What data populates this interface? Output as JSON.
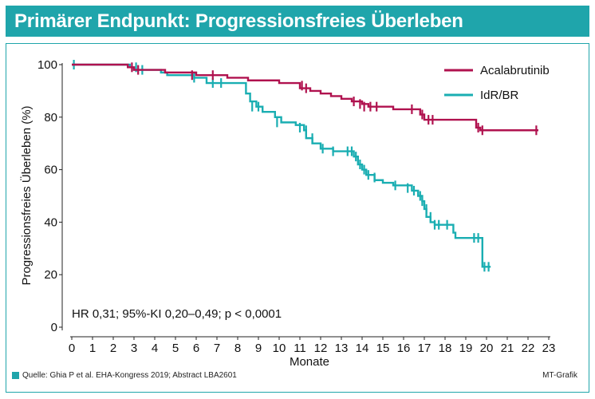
{
  "title": "Primärer Endpunkt: Progressionsfreies Überleben",
  "source": "Quelle: Ghia P et al. EHA-Kongress 2019; Abstract LBA2601",
  "credit": "MT-Grafik",
  "annotation": "HR 0,31; 95%-KI 0,20–0,49; p < 0,0001",
  "colors": {
    "accent": "#1fa5ab",
    "acalabrutinib": "#b0124f",
    "idr_br": "#1aaeb2"
  },
  "chart_data": {
    "type": "line",
    "step": true,
    "xlabel": "Monate",
    "ylabel": "Progressionsfreies Überleben (%)",
    "xlim": [
      0,
      23
    ],
    "ylim": [
      0,
      100
    ],
    "xticks": [
      0,
      1,
      2,
      3,
      4,
      5,
      6,
      7,
      8,
      9,
      10,
      11,
      12,
      13,
      14,
      15,
      16,
      17,
      18,
      19,
      20,
      21,
      22,
      23
    ],
    "yticks": [
      0,
      20,
      40,
      60,
      80,
      100
    ],
    "legend_position": "top-right",
    "series": [
      {
        "name": "Acalabrutinib",
        "color": "#b0124f",
        "points": [
          [
            0,
            100
          ],
          [
            2.7,
            99
          ],
          [
            3,
            98
          ],
          [
            4.5,
            97
          ],
          [
            6,
            96
          ],
          [
            7.5,
            95
          ],
          [
            8.5,
            94
          ],
          [
            10,
            93
          ],
          [
            11,
            91
          ],
          [
            11.5,
            90
          ],
          [
            12,
            89
          ],
          [
            12.5,
            88
          ],
          [
            13,
            87
          ],
          [
            13.5,
            86
          ],
          [
            14,
            85
          ],
          [
            14.3,
            84
          ],
          [
            15,
            84
          ],
          [
            15.5,
            83
          ],
          [
            16.5,
            83
          ],
          [
            16.8,
            81
          ],
          [
            17,
            79
          ],
          [
            18,
            79
          ],
          [
            19.3,
            79
          ],
          [
            19.5,
            76
          ],
          [
            19.7,
            75
          ],
          [
            22.5,
            75
          ]
        ],
        "censored": [
          [
            2.9,
            99
          ],
          [
            3.2,
            98
          ],
          [
            5.8,
            96
          ],
          [
            6.8,
            96
          ],
          [
            11.1,
            92
          ],
          [
            11.3,
            91
          ],
          [
            13.6,
            86
          ],
          [
            13.9,
            85
          ],
          [
            14.1,
            84
          ],
          [
            14.4,
            84
          ],
          [
            14.7,
            84
          ],
          [
            16.4,
            83
          ],
          [
            16.9,
            81
          ],
          [
            17.2,
            79
          ],
          [
            17.4,
            79
          ],
          [
            19.6,
            76
          ],
          [
            19.8,
            75
          ],
          [
            22.4,
            75
          ]
        ]
      },
      {
        "name": "IdR/BR",
        "color": "#1aaeb2",
        "points": [
          [
            0,
            100
          ],
          [
            2.8,
            99
          ],
          [
            3,
            98
          ],
          [
            4.3,
            97
          ],
          [
            4.6,
            96
          ],
          [
            5.9,
            95
          ],
          [
            6.5,
            93
          ],
          [
            8.2,
            93
          ],
          [
            8.4,
            89
          ],
          [
            8.6,
            86
          ],
          [
            8.9,
            84
          ],
          [
            9.2,
            82
          ],
          [
            9.8,
            80
          ],
          [
            10.1,
            78
          ],
          [
            10.8,
            77
          ],
          [
            11.2,
            75
          ],
          [
            11.3,
            72
          ],
          [
            11.6,
            70
          ],
          [
            12,
            68
          ],
          [
            12.6,
            67
          ],
          [
            13.4,
            67
          ],
          [
            13.6,
            65
          ],
          [
            13.8,
            62
          ],
          [
            14,
            60
          ],
          [
            14.2,
            58
          ],
          [
            14.6,
            56
          ],
          [
            15,
            55
          ],
          [
            15.5,
            54
          ],
          [
            16,
            54
          ],
          [
            16.4,
            52
          ],
          [
            16.7,
            50
          ],
          [
            16.9,
            48
          ],
          [
            17,
            45
          ],
          [
            17.1,
            42
          ],
          [
            17.3,
            40
          ],
          [
            17.5,
            39
          ],
          [
            18.1,
            39
          ],
          [
            18.4,
            36
          ],
          [
            18.5,
            34
          ],
          [
            19.2,
            34
          ],
          [
            19.5,
            34
          ],
          [
            19.7,
            34
          ],
          [
            19.8,
            23
          ],
          [
            20.2,
            23
          ]
        ],
        "censored": [
          [
            0.1,
            100
          ],
          [
            3.1,
            99
          ],
          [
            3.4,
            98
          ],
          [
            5.9,
            95
          ],
          [
            6.8,
            93
          ],
          [
            7.2,
            93
          ],
          [
            8.7,
            84
          ],
          [
            9.0,
            84
          ],
          [
            9.9,
            78
          ],
          [
            11.0,
            76
          ],
          [
            11.3,
            75
          ],
          [
            11.6,
            72
          ],
          [
            12.1,
            68
          ],
          [
            12.6,
            67
          ],
          [
            13.3,
            67
          ],
          [
            13.5,
            67
          ],
          [
            13.7,
            65
          ],
          [
            13.9,
            62
          ],
          [
            14.1,
            60
          ],
          [
            14.3,
            58
          ],
          [
            14.6,
            57
          ],
          [
            15.6,
            54
          ],
          [
            16.2,
            53
          ],
          [
            16.5,
            52
          ],
          [
            16.8,
            50
          ],
          [
            16.9,
            48
          ],
          [
            17.1,
            45
          ],
          [
            17.3,
            42
          ],
          [
            17.5,
            39
          ],
          [
            17.7,
            39
          ],
          [
            18.1,
            39
          ],
          [
            19.4,
            34
          ],
          [
            19.6,
            34
          ],
          [
            19.9,
            23
          ],
          [
            20.1,
            23
          ]
        ]
      }
    ]
  }
}
